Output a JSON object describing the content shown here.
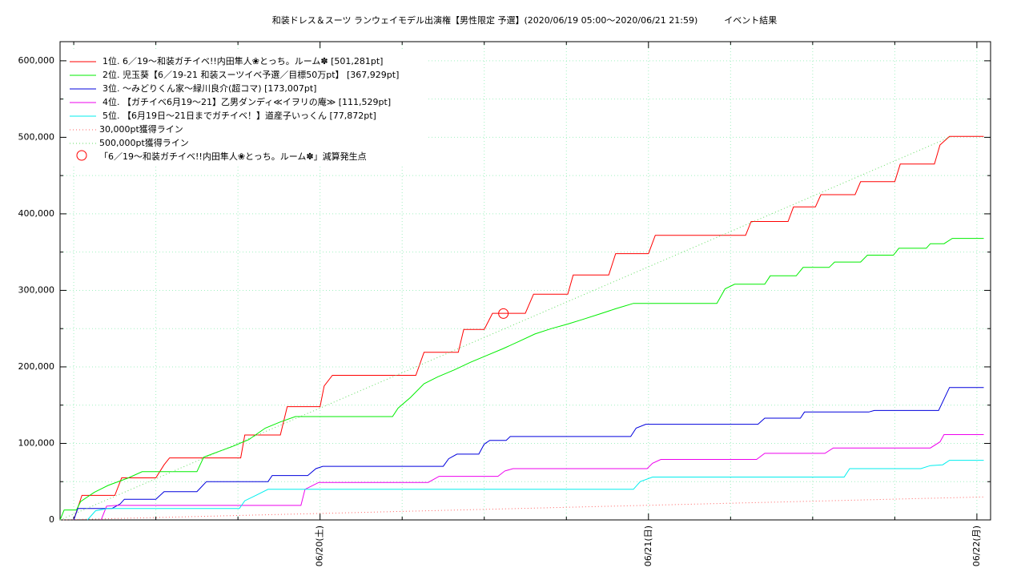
{
  "chart_data": {
    "type": "line",
    "title": "和装ドレス＆スーツ ランウェイモデル出演権【男性限定 予選】(2020/06/19 05:00〜2020/06/21 21:59)　　　イベント結果",
    "xlim": [
      5,
      73
    ],
    "ylim": [
      0,
      625000
    ],
    "xticks": [
      {
        "value": 24,
        "label": "06/20(土)"
      },
      {
        "value": 48,
        "label": "06/21(日)"
      },
      {
        "value": 72,
        "label": "06/22(月)"
      }
    ],
    "xminor": [
      6,
      12,
      18,
      30,
      36,
      42,
      54,
      60,
      66
    ],
    "yticks": [
      {
        "value": 0,
        "label": "0"
      },
      {
        "value": 100000,
        "label": "100,000"
      },
      {
        "value": 200000,
        "label": "200,000"
      },
      {
        "value": 300000,
        "label": "300,000"
      },
      {
        "value": 400000,
        "label": "400,000"
      },
      {
        "value": 500000,
        "label": "500,000"
      },
      {
        "value": 600000,
        "label": "600,000"
      }
    ],
    "yminor": [
      50000,
      150000,
      250000,
      350000,
      450000,
      550000
    ],
    "grid": true,
    "grid_color": "#a0f0c0",
    "series": [
      {
        "name": "1位. 6／19〜和装ガチイベ!!内田隼人❀とっち。ルーム✽ [501,281pt]",
        "color": "#ff0000",
        "style": "solid",
        "x": [
          6.0,
          6.6,
          9.0,
          9.5,
          12.0,
          12.6,
          13.0,
          18.2,
          18.5,
          21.1,
          21.6,
          24.0,
          24.3,
          24.9,
          31.0,
          31.6,
          34.1,
          34.5,
          36.0,
          36.6,
          39.0,
          39.6,
          42.1,
          42.5,
          45.1,
          45.6,
          48.0,
          48.5,
          55.1,
          55.5,
          58.2,
          58.6,
          60.2,
          60.6,
          63.1,
          63.5,
          66.0,
          66.4,
          68.9,
          69.3,
          70.0,
          72.5
        ],
        "values": [
          0,
          32000,
          32000,
          55000,
          55000,
          72000,
          81000,
          81000,
          111000,
          111000,
          148000,
          148000,
          175000,
          189000,
          189000,
          219000,
          219000,
          249000,
          249000,
          270000,
          270000,
          295000,
          295000,
          320000,
          320000,
          348000,
          348000,
          372000,
          372000,
          390000,
          390000,
          409000,
          409000,
          425000,
          425000,
          442000,
          442000,
          465000,
          465000,
          490000,
          501281,
          501281
        ]
      },
      {
        "name": "2位. 児玉葵【6／19-21 和装スーツイベ予選／目標50万pt】 [367,929pt]",
        "color": "#00ee00",
        "style": "solid",
        "x": [
          5.0,
          5.3,
          6.2,
          6.5,
          7.5,
          8.5,
          10.0,
          11.0,
          15.0,
          15.5,
          16.4,
          17.6,
          18.8,
          20.0,
          21.1,
          22.2,
          29.3,
          29.7,
          30.6,
          31.6,
          32.6,
          33.8,
          35.0,
          36.2,
          37.4,
          38.5,
          39.7,
          40.9,
          42.1,
          43.2,
          44.4,
          45.6,
          46.9,
          53.0,
          53.6,
          54.3,
          56.5,
          56.9,
          58.8,
          59.3,
          61.2,
          61.6,
          63.5,
          64.0,
          65.9,
          66.3,
          68.3,
          68.6,
          69.6,
          70.2,
          72.5
        ],
        "values": [
          0,
          13000,
          13000,
          24000,
          36000,
          45000,
          55000,
          63000,
          63000,
          82000,
          88000,
          96000,
          105000,
          120000,
          128000,
          135000,
          135000,
          146000,
          160000,
          178000,
          187000,
          196000,
          206000,
          215000,
          224000,
          233000,
          243000,
          250000,
          256000,
          262000,
          269000,
          276000,
          283000,
          283000,
          302000,
          308000,
          308000,
          319000,
          319000,
          330000,
          330000,
          337000,
          337000,
          346000,
          346000,
          355000,
          355000,
          361000,
          361000,
          367929,
          367929
        ]
      },
      {
        "name": "3位. 〜みどりくん家〜緑川良介(超コマ) [173,007pt]",
        "color": "#0000dd",
        "style": "solid",
        "x": [
          6.0,
          6.3,
          8.8,
          9.4,
          9.7,
          12.0,
          12.6,
          15.0,
          15.7,
          20.2,
          20.5,
          23.1,
          23.7,
          24.2,
          33.0,
          33.4,
          34.0,
          35.6,
          36.0,
          36.4,
          37.6,
          37.9,
          46.7,
          47.1,
          47.8,
          56.0,
          56.5,
          59.1,
          59.4,
          64.1,
          64.5,
          69.2,
          70.0,
          72.5
        ],
        "values": [
          0,
          15000,
          15000,
          21000,
          27000,
          27000,
          37000,
          37000,
          50000,
          50000,
          58000,
          58000,
          67000,
          70000,
          70000,
          80000,
          86000,
          86000,
          99000,
          104000,
          104000,
          109000,
          109000,
          120000,
          125000,
          125000,
          133000,
          133000,
          141000,
          141000,
          143000,
          143000,
          173007,
          173007
        ]
      },
      {
        "name": "4位. 【ガチイベ6月19〜21】乙男ダンディ≪イヲリの庵≫ [111,529pt]",
        "color": "#ee00ee",
        "style": "solid",
        "x": [
          8.0,
          8.4,
          9.1,
          22.6,
          22.9,
          23.9,
          31.9,
          32.7,
          37.0,
          37.5,
          38.1,
          47.9,
          48.3,
          48.9,
          55.9,
          56.5,
          60.9,
          61.5,
          68.6,
          69.3,
          69.6,
          72.5
        ],
        "values": [
          0,
          18000,
          19000,
          19000,
          40000,
          49000,
          49000,
          57000,
          57000,
          64000,
          67000,
          67000,
          74000,
          79000,
          79000,
          87000,
          87000,
          94000,
          94000,
          102000,
          111529,
          111529
        ]
      },
      {
        "name": "5位. 【6月19日〜21日までガチイベ！】道産子いっくん [77,872pt]",
        "color": "#00eeee",
        "style": "solid",
        "x": [
          7.0,
          7.6,
          8.5,
          18.1,
          18.5,
          19.3,
          20.2,
          46.9,
          47.4,
          48.3,
          62.3,
          62.7,
          67.9,
          68.6,
          69.5,
          70.0,
          72.5
        ],
        "values": [
          0,
          12000,
          15000,
          15000,
          25000,
          32000,
          40000,
          40000,
          50000,
          56000,
          56000,
          67000,
          67000,
          71000,
          72000,
          77872,
          77872
        ]
      },
      {
        "name": "30,000pt獲得ライン",
        "color": "#ff6060",
        "style": "dotted",
        "x": [
          5,
          72.5
        ],
        "values": [
          0,
          30000
        ]
      },
      {
        "name": "500,000pt獲得ライン",
        "color": "#60dd60",
        "style": "dotted",
        "x": [
          5,
          70
        ],
        "values": [
          0,
          500000
        ]
      }
    ],
    "markers": {
      "name": "「6／19〜和装ガチイベ!!内田隼人❀とっち。ルーム✽」減算発生点",
      "color": "#ff0000",
      "x": [
        37.4
      ],
      "values": [
        269700
      ]
    }
  }
}
